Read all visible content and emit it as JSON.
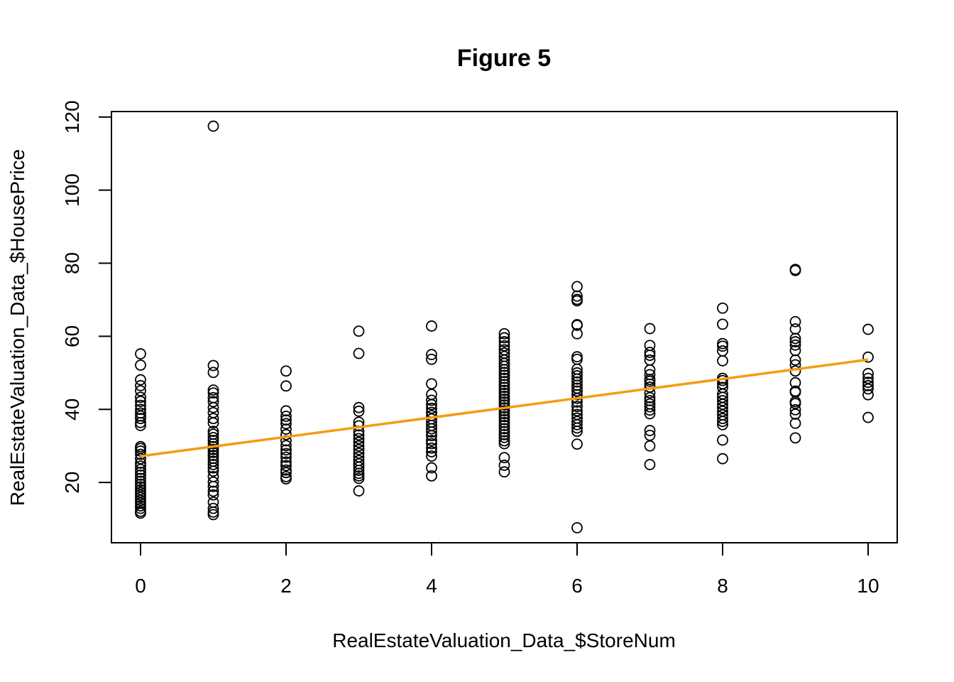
{
  "chart_data": {
    "type": "scatter",
    "title": "Figure 5",
    "xlabel": "RealEstateValuation_Data_$StoreNum",
    "ylabel": "RealEstateValuation_Data_$HousePrice",
    "x_ticks": [
      0,
      2,
      4,
      6,
      8,
      10
    ],
    "y_ticks": [
      20,
      40,
      60,
      80,
      100,
      120
    ],
    "xlim": [
      -0.4,
      10.4
    ],
    "ylim": [
      3.5,
      121.5
    ],
    "grid": false,
    "colors": {
      "points": "#000000",
      "trendline": "#f39c12"
    },
    "trendline": {
      "x": [
        0,
        10
      ],
      "y": [
        27.2,
        53.6
      ]
    },
    "points": [
      [
        0,
        55.2
      ],
      [
        0,
        52.1
      ],
      [
        0,
        48.1
      ],
      [
        0,
        46.5
      ],
      [
        0,
        45.1
      ],
      [
        0,
        43.3
      ],
      [
        0,
        42.2
      ],
      [
        0,
        41.1
      ],
      [
        0,
        40.0
      ],
      [
        0,
        39.0
      ],
      [
        0,
        38.2
      ],
      [
        0,
        37.5
      ],
      [
        0,
        36.4
      ],
      [
        0,
        35.6
      ],
      [
        0,
        29.8
      ],
      [
        0,
        29.3
      ],
      [
        0,
        28.6
      ],
      [
        0,
        27.7
      ],
      [
        0,
        26.5
      ],
      [
        0,
        25.3
      ],
      [
        0,
        24.5
      ],
      [
        0,
        23.6
      ],
      [
        0,
        22.8
      ],
      [
        0,
        22.0
      ],
      [
        0,
        21.1
      ],
      [
        0,
        20.3
      ],
      [
        0,
        19.5
      ],
      [
        0,
        18.8
      ],
      [
        0,
        18.0
      ],
      [
        0,
        17.3
      ],
      [
        0,
        16.6
      ],
      [
        0,
        15.9
      ],
      [
        0,
        15.1
      ],
      [
        0,
        14.4
      ],
      [
        0,
        13.6
      ],
      [
        0,
        12.9
      ],
      [
        0,
        12.1
      ],
      [
        0,
        11.6
      ],
      [
        1,
        117.5
      ],
      [
        1,
        52.0
      ],
      [
        1,
        50.1
      ],
      [
        1,
        45.3
      ],
      [
        1,
        44.5
      ],
      [
        1,
        43.2
      ],
      [
        1,
        42.1
      ],
      [
        1,
        40.5
      ],
      [
        1,
        39.1
      ],
      [
        1,
        37.5
      ],
      [
        1,
        36.3
      ],
      [
        1,
        34.0
      ],
      [
        1,
        33.2
      ],
      [
        1,
        32.3
      ],
      [
        1,
        31.5
      ],
      [
        1,
        30.6
      ],
      [
        1,
        29.8
      ],
      [
        1,
        29.0
      ],
      [
        1,
        28.2
      ],
      [
        1,
        27.4
      ],
      [
        1,
        26.6
      ],
      [
        1,
        25.8
      ],
      [
        1,
        24.9
      ],
      [
        1,
        24.0
      ],
      [
        1,
        23.1
      ],
      [
        1,
        21.6
      ],
      [
        1,
        20.1
      ],
      [
        1,
        18.9
      ],
      [
        1,
        17.6
      ],
      [
        1,
        16.6
      ],
      [
        1,
        14.6
      ],
      [
        1,
        12.9
      ],
      [
        1,
        11.9
      ],
      [
        1,
        11.2
      ],
      [
        2,
        50.5
      ],
      [
        2,
        46.4
      ],
      [
        2,
        39.6
      ],
      [
        2,
        38.1
      ],
      [
        2,
        37.1
      ],
      [
        2,
        36.1
      ],
      [
        2,
        34.6
      ],
      [
        2,
        33.1
      ],
      [
        2,
        31.4
      ],
      [
        2,
        30.1
      ],
      [
        2,
        28.9
      ],
      [
        2,
        27.9
      ],
      [
        2,
        26.9
      ],
      [
        2,
        25.6
      ],
      [
        2,
        24.6
      ],
      [
        2,
        23.4
      ],
      [
        2,
        22.7
      ],
      [
        2,
        21.6
      ],
      [
        2,
        21.0
      ],
      [
        3,
        61.4
      ],
      [
        3,
        55.3
      ],
      [
        3,
        40.5
      ],
      [
        3,
        39.5
      ],
      [
        3,
        36.5
      ],
      [
        3,
        35.5
      ],
      [
        3,
        34.0
      ],
      [
        3,
        33.0
      ],
      [
        3,
        32.0
      ],
      [
        3,
        31.0
      ],
      [
        3,
        30.0
      ],
      [
        3,
        29.0
      ],
      [
        3,
        28.0
      ],
      [
        3,
        27.0
      ],
      [
        3,
        26.0
      ],
      [
        3,
        25.1
      ],
      [
        3,
        24.2
      ],
      [
        3,
        23.3
      ],
      [
        3,
        22.5
      ],
      [
        3,
        21.8
      ],
      [
        3,
        21.1
      ],
      [
        3,
        17.7
      ],
      [
        4,
        62.8
      ],
      [
        4,
        55.0
      ],
      [
        4,
        53.7
      ],
      [
        4,
        47.0
      ],
      [
        4,
        44.1
      ],
      [
        4,
        42.5
      ],
      [
        4,
        41.3
      ],
      [
        4,
        40.3
      ],
      [
        4,
        39.2
      ],
      [
        4,
        38.3
      ],
      [
        4,
        37.4
      ],
      [
        4,
        36.5
      ],
      [
        4,
        35.6
      ],
      [
        4,
        34.7
      ],
      [
        4,
        33.8
      ],
      [
        4,
        32.8
      ],
      [
        4,
        31.5
      ],
      [
        4,
        30.6
      ],
      [
        4,
        29.4
      ],
      [
        4,
        28.4
      ],
      [
        4,
        27.2
      ],
      [
        4,
        24.0
      ],
      [
        4,
        21.8
      ],
      [
        5,
        60.7
      ],
      [
        5,
        59.6
      ],
      [
        5,
        58.5
      ],
      [
        5,
        57.4
      ],
      [
        5,
        56.3
      ],
      [
        5,
        55.4
      ],
      [
        5,
        54.5
      ],
      [
        5,
        53.5
      ],
      [
        5,
        52.6
      ],
      [
        5,
        51.8
      ],
      [
        5,
        50.9
      ],
      [
        5,
        50.1
      ],
      [
        5,
        49.3
      ],
      [
        5,
        48.5
      ],
      [
        5,
        47.6
      ],
      [
        5,
        46.8
      ],
      [
        5,
        46.0
      ],
      [
        5,
        45.2
      ],
      [
        5,
        44.4
      ],
      [
        5,
        43.6
      ],
      [
        5,
        42.8
      ],
      [
        5,
        42.0
      ],
      [
        5,
        41.2
      ],
      [
        5,
        40.4
      ],
      [
        5,
        39.6
      ],
      [
        5,
        38.8
      ],
      [
        5,
        38.0
      ],
      [
        5,
        37.2
      ],
      [
        5,
        36.4
      ],
      [
        5,
        35.6
      ],
      [
        5,
        34.7
      ],
      [
        5,
        33.9
      ],
      [
        5,
        33.1
      ],
      [
        5,
        32.3
      ],
      [
        5,
        31.4
      ],
      [
        5,
        30.6
      ],
      [
        5,
        26.8
      ],
      [
        5,
        24.7
      ],
      [
        5,
        22.9
      ],
      [
        6,
        73.6
      ],
      [
        6,
        71.0
      ],
      [
        6,
        70.1
      ],
      [
        6,
        69.7
      ],
      [
        6,
        63.2
      ],
      [
        6,
        63.0
      ],
      [
        6,
        60.7
      ],
      [
        6,
        54.4
      ],
      [
        6,
        53.7
      ],
      [
        6,
        51.0
      ],
      [
        6,
        50.0
      ],
      [
        6,
        49.2
      ],
      [
        6,
        48.3
      ],
      [
        6,
        47.5
      ],
      [
        6,
        46.6
      ],
      [
        6,
        45.8
      ],
      [
        6,
        45.0
      ],
      [
        6,
        44.0
      ],
      [
        6,
        43.0
      ],
      [
        6,
        42.0
      ],
      [
        6,
        40.8
      ],
      [
        6,
        39.6
      ],
      [
        6,
        38.6
      ],
      [
        6,
        37.6
      ],
      [
        6,
        36.7
      ],
      [
        6,
        35.8
      ],
      [
        6,
        34.9
      ],
      [
        6,
        34.0
      ],
      [
        6,
        30.5
      ],
      [
        6,
        7.6
      ],
      [
        7,
        62.1
      ],
      [
        7,
        57.5
      ],
      [
        7,
        55.6
      ],
      [
        7,
        54.8
      ],
      [
        7,
        53.5
      ],
      [
        7,
        50.8
      ],
      [
        7,
        49.5
      ],
      [
        7,
        48.2
      ],
      [
        7,
        47.7
      ],
      [
        7,
        46.9
      ],
      [
        7,
        46.1
      ],
      [
        7,
        44.5
      ],
      [
        7,
        43.2
      ],
      [
        7,
        42.4
      ],
      [
        7,
        41.5
      ],
      [
        7,
        40.7
      ],
      [
        7,
        39.8
      ],
      [
        7,
        38.8
      ],
      [
        7,
        34.2
      ],
      [
        7,
        32.9
      ],
      [
        7,
        30.0
      ],
      [
        7,
        24.9
      ],
      [
        8,
        67.7
      ],
      [
        8,
        63.3
      ],
      [
        8,
        58.0
      ],
      [
        8,
        57.3
      ],
      [
        8,
        56.0
      ],
      [
        8,
        53.3
      ],
      [
        8,
        48.5
      ],
      [
        8,
        47.9
      ],
      [
        8,
        47.0
      ],
      [
        8,
        46.0
      ],
      [
        8,
        44.2
      ],
      [
        8,
        43.3
      ],
      [
        8,
        42.4
      ],
      [
        8,
        41.4
      ],
      [
        8,
        40.5
      ],
      [
        8,
        39.5
      ],
      [
        8,
        38.5
      ],
      [
        8,
        37.5
      ],
      [
        8,
        36.7
      ],
      [
        8,
        35.8
      ],
      [
        8,
        31.6
      ],
      [
        8,
        26.5
      ],
      [
        9,
        78.3
      ],
      [
        9,
        78.0
      ],
      [
        9,
        64.0
      ],
      [
        9,
        62.0
      ],
      [
        9,
        59.4
      ],
      [
        9,
        58.5
      ],
      [
        9,
        57.6
      ],
      [
        9,
        56.1
      ],
      [
        9,
        53.5
      ],
      [
        9,
        52.2
      ],
      [
        9,
        50.5
      ],
      [
        9,
        47.3
      ],
      [
        9,
        45.0
      ],
      [
        9,
        44.7
      ],
      [
        9,
        42.1
      ],
      [
        9,
        41.6
      ],
      [
        9,
        39.9
      ],
      [
        9,
        38.7
      ],
      [
        9,
        36.2
      ],
      [
        9,
        32.2
      ],
      [
        10,
        61.9
      ],
      [
        10,
        54.3
      ],
      [
        10,
        49.8
      ],
      [
        10,
        48.5
      ],
      [
        10,
        47.4
      ],
      [
        10,
        46.5
      ],
      [
        10,
        45.6
      ],
      [
        10,
        44.0
      ],
      [
        10,
        37.8
      ]
    ]
  }
}
